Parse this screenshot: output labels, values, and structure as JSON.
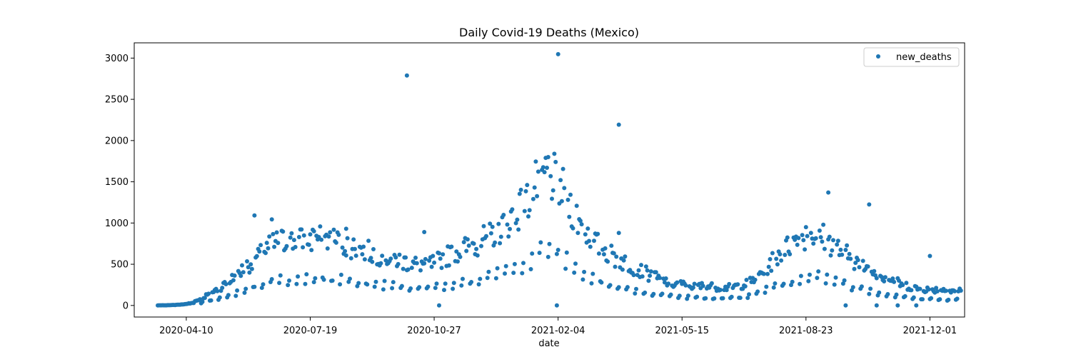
{
  "chart_data": {
    "type": "scatter",
    "title": "Daily Covid-19 Deaths (Mexico)",
    "xlabel": "date",
    "ylabel": "",
    "x_range": [
      "2020-02-28",
      "2021-12-29"
    ],
    "ylim": [
      -140,
      3185
    ],
    "x_ticks": [
      "2020-04-10",
      "2020-07-19",
      "2020-10-27",
      "2021-02-04",
      "2021-05-15",
      "2021-08-23",
      "2021-12-01"
    ],
    "y_ticks": [
      0,
      500,
      1000,
      1500,
      2000,
      2500,
      3000
    ],
    "legend": {
      "position": "top-right",
      "entries": [
        "new_deaths"
      ]
    },
    "grid": false,
    "color": "#1f77b4",
    "series": [
      {
        "name": "new_deaths",
        "anchors": [
          [
            "2020-03-18",
            1
          ],
          [
            "2020-03-25",
            3
          ],
          [
            "2020-04-01",
            6
          ],
          [
            "2020-04-08",
            14
          ],
          [
            "2020-04-15",
            30
          ],
          [
            "2020-04-22",
            70
          ],
          [
            "2020-04-29",
            120
          ],
          [
            "2020-05-06",
            170
          ],
          [
            "2020-05-13",
            230
          ],
          [
            "2020-05-20",
            300
          ],
          [
            "2020-05-27",
            380
          ],
          [
            "2020-06-03",
            450
          ],
          [
            "2020-06-10",
            520
          ],
          [
            "2020-06-17",
            600
          ],
          [
            "2020-06-24",
            650
          ],
          [
            "2020-07-01",
            640
          ],
          [
            "2020-07-15",
            660
          ],
          [
            "2020-07-29",
            680
          ],
          [
            "2020-08-10",
            650
          ],
          [
            "2020-08-25",
            580
          ],
          [
            "2020-09-10",
            520
          ],
          [
            "2020-09-25",
            470
          ],
          [
            "2020-10-10",
            420
          ],
          [
            "2020-10-25",
            420
          ],
          [
            "2020-11-10",
            520
          ],
          [
            "2020-11-25",
            600
          ],
          [
            "2020-12-10",
            690
          ],
          [
            "2020-12-25",
            850
          ],
          [
            "2021-01-10",
            1050
          ],
          [
            "2021-01-20",
            1280
          ],
          [
            "2021-01-27",
            1320
          ],
          [
            "2021-02-03",
            1250
          ],
          [
            "2021-02-12",
            1060
          ],
          [
            "2021-02-22",
            820
          ],
          [
            "2021-03-07",
            620
          ],
          [
            "2021-03-22",
            480
          ],
          [
            "2021-04-07",
            380
          ],
          [
            "2021-04-22",
            290
          ],
          [
            "2021-05-07",
            220
          ],
          [
            "2021-05-22",
            200
          ],
          [
            "2021-06-07",
            190
          ],
          [
            "2021-06-22",
            180
          ],
          [
            "2021-07-07",
            220
          ],
          [
            "2021-07-20",
            350
          ],
          [
            "2021-08-01",
            520
          ],
          [
            "2021-08-14",
            640
          ],
          [
            "2021-08-25",
            740
          ],
          [
            "2021-09-05",
            700
          ],
          [
            "2021-09-20",
            560
          ],
          [
            "2021-10-05",
            420
          ],
          [
            "2021-10-20",
            320
          ],
          [
            "2021-11-05",
            230
          ],
          [
            "2021-11-20",
            170
          ],
          [
            "2021-12-05",
            160
          ],
          [
            "2021-12-20",
            150
          ]
        ],
        "outliers": [
          [
            "2020-06-04",
            1092
          ],
          [
            "2020-06-18",
            1044
          ],
          [
            "2020-07-22",
            900
          ],
          [
            "2020-08-17",
            930
          ],
          [
            "2020-10-05",
            2789
          ],
          [
            "2020-10-19",
            890
          ],
          [
            "2020-10-31",
            0
          ],
          [
            "2021-01-27",
            1800
          ],
          [
            "2021-02-03",
            0
          ],
          [
            "2021-02-04",
            3047
          ],
          [
            "2021-03-25",
            2193
          ],
          [
            "2021-03-25",
            880
          ],
          [
            "2021-09-10",
            1370
          ],
          [
            "2021-09-24",
            0
          ],
          [
            "2021-10-13",
            1225
          ],
          [
            "2021-10-19",
            0
          ],
          [
            "2021-11-05",
            0
          ],
          [
            "2021-11-20",
            0
          ],
          [
            "2021-12-01",
            600
          ]
        ]
      }
    ]
  }
}
